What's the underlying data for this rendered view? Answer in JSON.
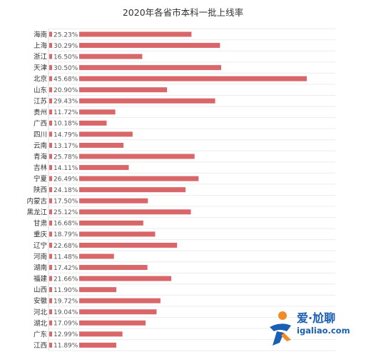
{
  "chart_data": {
    "type": "bar",
    "orientation": "horizontal",
    "title": "2020年各省市本科一批上线率",
    "categories": [
      "海南",
      "上海",
      "浙江",
      "天津",
      "北京",
      "山东",
      "江苏",
      "贵州",
      "广西",
      "四川",
      "云南",
      "青海",
      "吉林",
      "宁夏",
      "陕西",
      "内蒙古",
      "黑龙江",
      "甘肃",
      "重庆",
      "辽宁",
      "河南",
      "湖南",
      "福建",
      "山西",
      "安徽",
      "河北",
      "湖北",
      "广东",
      "江西"
    ],
    "values": [
      25.23,
      30.29,
      16.5,
      30.5,
      45.68,
      20.9,
      29.43,
      11.72,
      10.18,
      14.79,
      13.17,
      25.78,
      14.11,
      26.49,
      24.18,
      17.5,
      25.12,
      16.68,
      18.79,
      22.68,
      11.48,
      17.42,
      21.66,
      11.9,
      19.72,
      19.04,
      17.09,
      12.99,
      11.89
    ],
    "value_labels": [
      "25.23%",
      "30.29%",
      "16.50%",
      "30.50%",
      "45.68%",
      "20.90%",
      "29.43%",
      "11.72%",
      "10.18%",
      "14.79%",
      "13.17%",
      "25.78%",
      "14.11%",
      "26.49%",
      "24.18%",
      "17.50%",
      "25.12%",
      "16.68%",
      "18.79%",
      "22.68%",
      "11.48%",
      "17.42%",
      "21.66%",
      "11.90%",
      "19.72%",
      "19.04%",
      "17.09%",
      "12.99%",
      "11.89%"
    ],
    "unit": "%",
    "xlim": [
      0,
      45.68
    ],
    "grid": true,
    "legend": "none",
    "bar_color": "#d9676a"
  },
  "watermark": {
    "brand": "爱·尬聊",
    "url": "igaliao.com",
    "brand_color": "#1a5fb4",
    "accent_color": "#f28c28"
  }
}
